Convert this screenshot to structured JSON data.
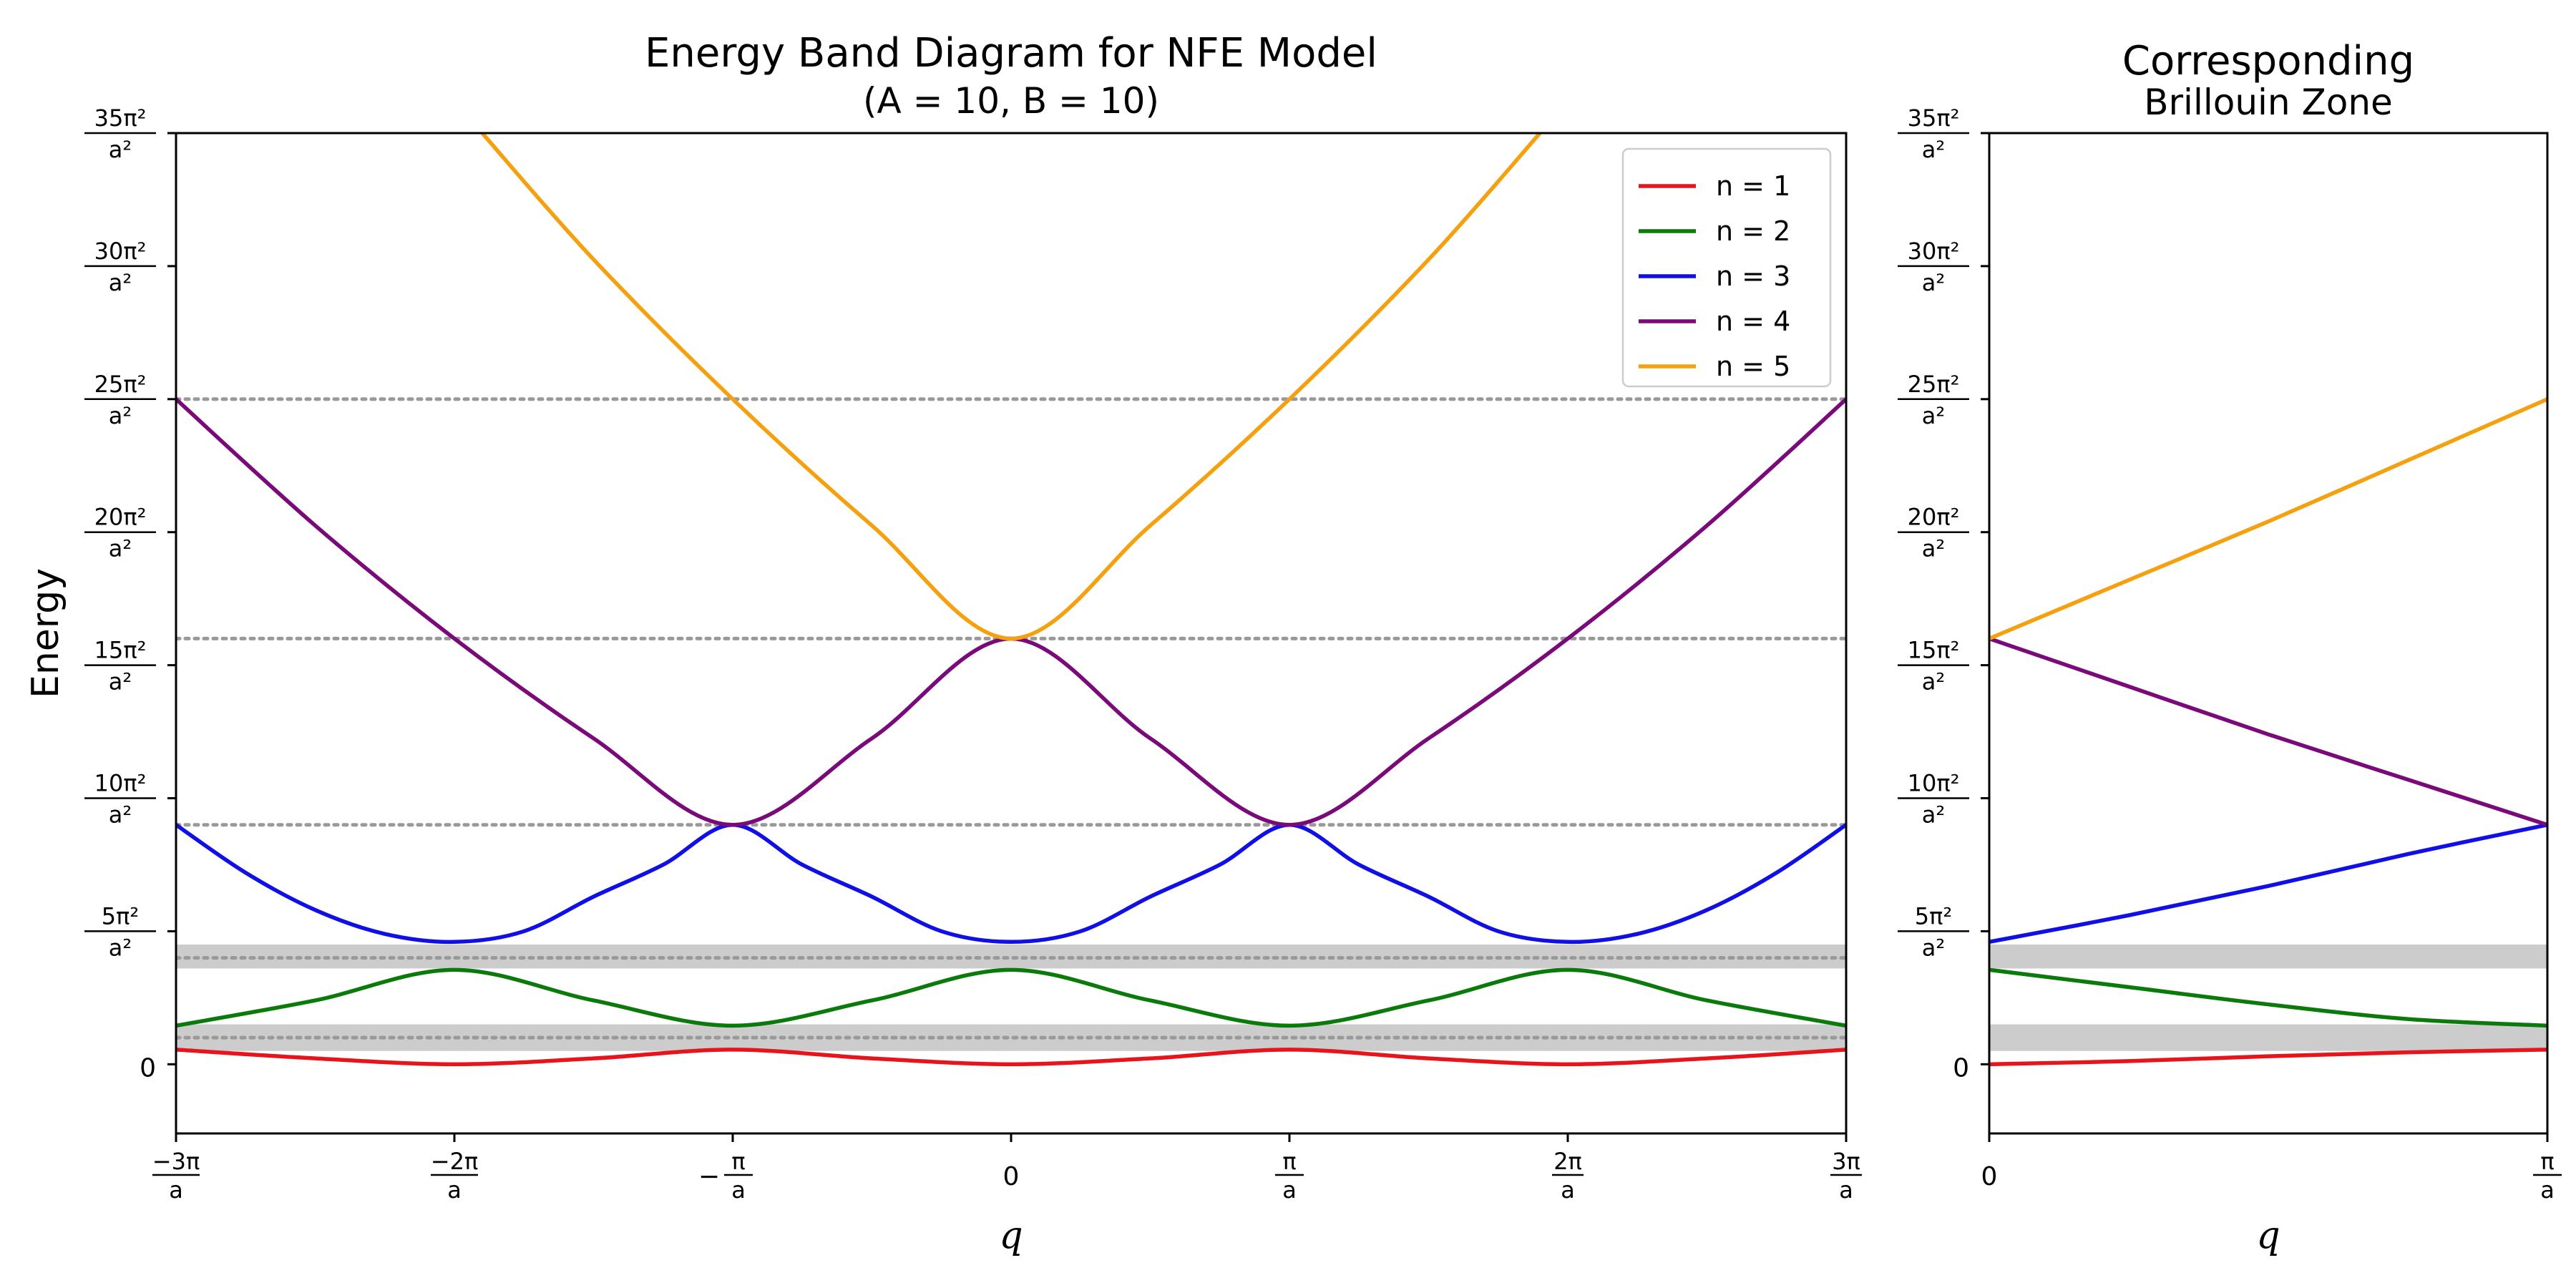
{
  "chart_data": [
    {
      "type": "line",
      "title": "Energy Band Diagram for NFE Model",
      "subtitle": "(A = 10, B = 10)",
      "xlabel": "q",
      "ylabel": "Energy",
      "x_unit": "π/a",
      "y_unit": "π²/a²",
      "xlim": [
        -3,
        3
      ],
      "ylim": [
        -2.6,
        35
      ],
      "x_ticks": [
        {
          "value": -3,
          "num": "−3π",
          "den": "a"
        },
        {
          "value": -2,
          "num": "−2π",
          "den": "a"
        },
        {
          "value": -1,
          "num": "−π",
          "den": "a",
          "prefix": true
        },
        {
          "value": 0,
          "label": "0"
        },
        {
          "value": 1,
          "num": "π",
          "den": "a"
        },
        {
          "value": 2,
          "num": "2π",
          "den": "a"
        },
        {
          "value": 3,
          "num": "3π",
          "den": "a"
        }
      ],
      "y_ticks": [
        {
          "value": 0,
          "label": "0"
        },
        {
          "value": 5,
          "num": "5π²",
          "den": "a²"
        },
        {
          "value": 10,
          "num": "10π²",
          "den": "a²"
        },
        {
          "value": 15,
          "num": "15π²",
          "den": "a²"
        },
        {
          "value": 20,
          "num": "20π²",
          "den": "a²"
        },
        {
          "value": 25,
          "num": "25π²",
          "den": "a²"
        },
        {
          "value": 30,
          "num": "30π²",
          "den": "a²"
        },
        {
          "value": 35,
          "num": "35π²",
          "den": "a²"
        }
      ],
      "reference_lines": [
        1,
        4,
        9,
        16,
        25
      ],
      "band_gaps": [
        [
          0.5,
          1.5
        ],
        [
          3.6,
          4.5
        ]
      ],
      "legend_position": "top-right",
      "series": [
        {
          "name": "n = 1",
          "color": "#e8141c",
          "points": [
            [
              -3,
              0.55
            ],
            [
              -2.5,
              0.22
            ],
            [
              -2,
              0.0
            ],
            [
              -1.5,
              0.22
            ],
            [
              -1,
              0.55
            ],
            [
              -0.5,
              0.22
            ],
            [
              0,
              0.0
            ],
            [
              0.5,
              0.22
            ],
            [
              1,
              0.55
            ],
            [
              1.5,
              0.22
            ],
            [
              2,
              0.0
            ],
            [
              2.5,
              0.22
            ],
            [
              3,
              0.55
            ]
          ]
        },
        {
          "name": "n = 2",
          "color": "#0a7a0a",
          "points": [
            [
              -3,
              1.45
            ],
            [
              -2.5,
              2.4
            ],
            [
              -2,
              3.55
            ],
            [
              -1.5,
              2.4
            ],
            [
              -1,
              1.45
            ],
            [
              -0.5,
              2.4
            ],
            [
              0,
              3.55
            ],
            [
              0.5,
              2.4
            ],
            [
              1,
              1.45
            ],
            [
              1.5,
              2.4
            ],
            [
              2,
              3.55
            ],
            [
              2.5,
              2.4
            ],
            [
              3,
              1.45
            ]
          ]
        },
        {
          "name": "n = 3",
          "color": "#1010e6",
          "points": [
            [
              -3,
              9.0
            ],
            [
              -2.75,
              7.2
            ],
            [
              -2.5,
              5.8
            ],
            [
              -2.25,
              4.9
            ],
            [
              -2,
              4.6
            ],
            [
              -1.75,
              5.0
            ],
            [
              -1.5,
              6.3
            ],
            [
              -1.25,
              7.5
            ],
            [
              -1,
              9.0
            ],
            [
              -0.75,
              7.5
            ],
            [
              -0.5,
              6.3
            ],
            [
              -0.25,
              5.0
            ],
            [
              0,
              4.6
            ],
            [
              0.25,
              5.0
            ],
            [
              0.5,
              6.3
            ],
            [
              0.75,
              7.5
            ],
            [
              1,
              9.0
            ],
            [
              1.25,
              7.5
            ],
            [
              1.5,
              6.3
            ],
            [
              1.75,
              5.0
            ],
            [
              2,
              4.6
            ],
            [
              2.25,
              4.9
            ],
            [
              2.5,
              5.8
            ],
            [
              2.75,
              7.2
            ],
            [
              3,
              9.0
            ]
          ]
        },
        {
          "name": "n = 4",
          "color": "#7a0a7a",
          "points": [
            [
              -3,
              25.0
            ],
            [
              -2.5,
              20.25
            ],
            [
              -2,
              16.0
            ],
            [
              -1.5,
              12.25
            ],
            [
              -1,
              9.0
            ],
            [
              -0.5,
              12.25
            ],
            [
              0,
              16.0
            ],
            [
              0.5,
              12.25
            ],
            [
              1,
              9.0
            ],
            [
              1.5,
              12.25
            ],
            [
              2,
              16.0
            ],
            [
              2.5,
              20.25
            ],
            [
              3,
              25.0
            ]
          ]
        },
        {
          "name": "n = 5",
          "color": "#f5a00f",
          "points": [
            [
              -1.9,
              35.0
            ],
            [
              -1.5,
              30.25
            ],
            [
              -1,
              25.0
            ],
            [
              -0.5,
              20.25
            ],
            [
              0,
              16.0
            ],
            [
              0.5,
              20.25
            ],
            [
              1,
              25.0
            ],
            [
              1.5,
              30.25
            ],
            [
              1.9,
              35.0
            ]
          ]
        }
      ]
    },
    {
      "type": "line",
      "title": "Corresponding",
      "subtitle": "Brillouin Zone",
      "xlabel": "q",
      "xlim": [
        0,
        1
      ],
      "ylim": [
        -2.6,
        35
      ],
      "x_ticks": [
        {
          "value": 0,
          "label": "0"
        },
        {
          "value": 1,
          "num": "π",
          "den": "a"
        }
      ],
      "y_ticks": [
        {
          "value": 0,
          "label": "0"
        },
        {
          "value": 5,
          "num": "5π²",
          "den": "a²"
        },
        {
          "value": 10,
          "num": "10π²",
          "den": "a²"
        },
        {
          "value": 15,
          "num": "15π²",
          "den": "a²"
        },
        {
          "value": 20,
          "num": "20π²",
          "den": "a²"
        },
        {
          "value": 25,
          "num": "25π²",
          "den": "a²"
        },
        {
          "value": 30,
          "num": "30π²",
          "den": "a²"
        },
        {
          "value": 35,
          "num": "35π²",
          "den": "a²"
        }
      ],
      "band_gaps": [
        [
          0.5,
          1.5
        ],
        [
          3.6,
          4.5
        ]
      ],
      "series": [
        {
          "color": "#e8141c",
          "points": [
            [
              0,
              0.0
            ],
            [
              0.25,
              0.12
            ],
            [
              0.5,
              0.3
            ],
            [
              0.75,
              0.45
            ],
            [
              1,
              0.55
            ]
          ]
        },
        {
          "color": "#0a7a0a",
          "points": [
            [
              0,
              3.55
            ],
            [
              0.25,
              2.9
            ],
            [
              0.5,
              2.25
            ],
            [
              0.75,
              1.7
            ],
            [
              1,
              1.45
            ]
          ]
        },
        {
          "color": "#1010e6",
          "points": [
            [
              0,
              4.6
            ],
            [
              0.25,
              5.6
            ],
            [
              0.5,
              6.7
            ],
            [
              0.75,
              7.9
            ],
            [
              1,
              9.0
            ]
          ]
        },
        {
          "color": "#7a0a7a",
          "points": [
            [
              0,
              16.0
            ],
            [
              0.25,
              14.2
            ],
            [
              0.5,
              12.4
            ],
            [
              0.75,
              10.7
            ],
            [
              1,
              9.0
            ]
          ]
        },
        {
          "color": "#f5a00f",
          "points": [
            [
              0,
              16.0
            ],
            [
              0.25,
              18.2
            ],
            [
              0.5,
              20.4
            ],
            [
              0.75,
              22.7
            ],
            [
              1,
              25.0
            ]
          ]
        }
      ]
    }
  ]
}
